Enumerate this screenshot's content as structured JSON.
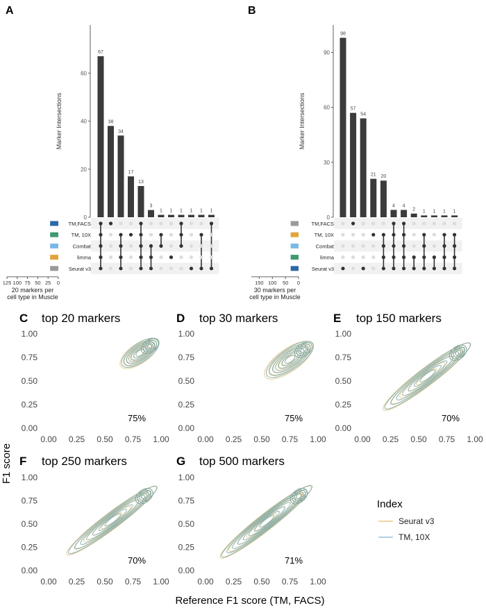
{
  "figure": {
    "panel_labels": [
      "A",
      "B",
      "C",
      "D",
      "E",
      "F",
      "G"
    ],
    "y_axis_label": "F1 score",
    "x_axis_label": "Reference F1 score (TM, FACS)"
  },
  "chart_data": [
    {
      "type": "upset",
      "panel": "A",
      "ylabel": "Marker Intersections",
      "y_ticks": [
        0,
        20,
        40,
        60
      ],
      "ylim": [
        0,
        80
      ],
      "values": [
        67,
        38,
        34,
        17,
        13,
        3,
        1,
        1,
        1,
        1,
        1,
        1
      ],
      "value_labels": [
        "67",
        "38",
        "34",
        "17",
        "13",
        "3",
        "1",
        "1",
        "1",
        "1",
        "1",
        "1"
      ],
      "sets": [
        "TM,FACS",
        "TM, 10X",
        "Combat",
        "limma",
        "Seurat v3"
      ],
      "set_colors": [
        "#2c6aa6",
        "#3e9a72",
        "#7ab9e6",
        "#e2a43a",
        "#9a9a9a"
      ],
      "set_sizes": [
        20,
        20,
        20,
        20,
        20
      ],
      "set_size_ticks": [
        "125",
        "100",
        "75",
        "50",
        "25",
        "0"
      ],
      "set_size_max": 125,
      "set_size_label_1": "20 markers per",
      "set_size_label_2": "cell type in Muscle",
      "matrix": [
        [
          1,
          1,
          1,
          1,
          1
        ],
        [
          1,
          0,
          0,
          0,
          0
        ],
        [
          0,
          1,
          1,
          1,
          1
        ],
        [
          0,
          1,
          0,
          0,
          0
        ],
        [
          1,
          1,
          1,
          1,
          1
        ],
        [
          0,
          0,
          1,
          1,
          1
        ],
        [
          0,
          1,
          1,
          0,
          0
        ],
        [
          0,
          0,
          0,
          1,
          0
        ],
        [
          1,
          1,
          1,
          0,
          0
        ],
        [
          0,
          0,
          0,
          0,
          1
        ],
        [
          0,
          1,
          0,
          0,
          1
        ],
        [
          1,
          0,
          0,
          0,
          1
        ]
      ]
    },
    {
      "type": "upset",
      "panel": "B",
      "ylabel": "Marker Intersections",
      "y_ticks": [
        0,
        30,
        60,
        90
      ],
      "ylim": [
        0,
        105
      ],
      "values": [
        98,
        57,
        54,
        21,
        20,
        4,
        4,
        2,
        1,
        1,
        1,
        1
      ],
      "value_labels": [
        "98",
        "57",
        "54",
        "21",
        "20",
        "4",
        "4",
        "2",
        "1",
        "1",
        "1",
        "1"
      ],
      "sets": [
        "TM,FACS",
        "TM, 10X",
        "Combat",
        "limma",
        "Seurat v3"
      ],
      "set_colors": [
        "#9a9a9a",
        "#e2a43a",
        "#7ab9e6",
        "#3e9a72",
        "#2c6aa6"
      ],
      "set_sizes": [
        30,
        30,
        30,
        30,
        30
      ],
      "set_size_ticks": [
        "150",
        "100",
        "50",
        "0"
      ],
      "set_size_max": 180,
      "set_size_label_1": "30 markers per",
      "set_size_label_2": "cell type in Muscle",
      "matrix": [
        [
          0,
          0,
          0,
          0,
          1
        ],
        [
          1,
          0,
          0,
          0,
          0
        ],
        [
          0,
          0,
          0,
          0,
          1
        ],
        [
          0,
          1,
          0,
          0,
          0
        ],
        [
          0,
          1,
          1,
          1,
          1
        ],
        [
          1,
          1,
          1,
          1,
          1
        ],
        [
          1,
          1,
          1,
          1,
          1
        ],
        [
          0,
          0,
          0,
          1,
          1
        ],
        [
          0,
          1,
          1,
          1,
          1
        ],
        [
          0,
          0,
          0,
          1,
          1
        ],
        [
          0,
          1,
          1,
          1,
          1
        ],
        [
          0,
          1,
          1,
          1,
          1
        ]
      ]
    },
    {
      "type": "density-contour",
      "panel": "C",
      "title": "top 20 markers",
      "annotation": "75%",
      "x_ticks": [
        "0.00",
        "0.25",
        "0.50",
        "0.75",
        "1.00"
      ],
      "y_ticks": [
        "0.00",
        "0.25",
        "0.50",
        "0.75",
        "1.00"
      ],
      "xlim": [
        0,
        1
      ],
      "ylim": [
        0,
        1
      ],
      "series": [
        {
          "color": "#e5c98a",
          "centers": [
            [
              0.72,
              0.72
            ],
            [
              0.9,
              0.87
            ]
          ],
          "spread": [
            0.2,
            0.16
          ],
          "levels": 5
        },
        {
          "color": "#7fa6a0",
          "centers": [
            [
              0.72,
              0.72
            ],
            [
              0.9,
              0.87
            ]
          ],
          "spread": [
            0.19,
            0.15
          ],
          "levels": 7
        }
      ]
    },
    {
      "type": "density-contour",
      "panel": "D",
      "title": "top 30 markers",
      "annotation": "75%",
      "x_ticks": [
        "0.00",
        "0.25",
        "0.50",
        "0.75",
        "1.00"
      ],
      "y_ticks": [
        "0.00",
        "0.25",
        "0.50",
        "0.75",
        "1.00"
      ],
      "xlim": [
        0,
        1
      ],
      "ylim": [
        0,
        1
      ],
      "series": [
        {
          "color": "#e5c98a",
          "centers": [
            [
              0.62,
              0.62
            ],
            [
              0.87,
              0.83
            ]
          ],
          "spread": [
            0.24,
            0.19
          ],
          "levels": 5
        },
        {
          "color": "#7fa6a0",
          "centers": [
            [
              0.62,
              0.62
            ],
            [
              0.87,
              0.83
            ]
          ],
          "spread": [
            0.22,
            0.17
          ],
          "levels": 7
        }
      ]
    },
    {
      "type": "density-contour",
      "panel": "E",
      "title": "top 150 markers",
      "annotation": "70%",
      "x_ticks": [
        "0.00",
        "0.25",
        "0.50",
        "0.75",
        "1.00"
      ],
      "y_ticks": [
        "0.00",
        "0.25",
        "0.50",
        "0.75",
        "1.00"
      ],
      "xlim": [
        0,
        1
      ],
      "ylim": [
        0,
        1
      ],
      "series": [
        {
          "color": "#e5c98a",
          "centers": [
            [
              0.3,
              0.3
            ],
            [
              0.85,
              0.8
            ]
          ],
          "spread": [
            0.34,
            0.14
          ],
          "levels": 5
        },
        {
          "color": "#7fa6a0",
          "centers": [
            [
              0.3,
              0.3
            ],
            [
              0.85,
              0.8
            ]
          ],
          "spread": [
            0.32,
            0.13
          ],
          "levels": 7
        }
      ]
    },
    {
      "type": "density-contour",
      "panel": "F",
      "title": "top 250 markers",
      "annotation": "70%",
      "x_ticks": [
        "0.00",
        "0.25",
        "0.50",
        "0.75",
        "1.00"
      ],
      "y_ticks": [
        "0.00",
        "0.25",
        "0.50",
        "0.75",
        "1.00"
      ],
      "xlim": [
        0,
        1
      ],
      "ylim": [
        0,
        1
      ],
      "series": [
        {
          "color": "#e5c98a",
          "centers": [
            [
              0.28,
              0.28
            ],
            [
              0.85,
              0.8
            ]
          ],
          "spread": [
            0.35,
            0.13
          ],
          "levels": 5
        },
        {
          "color": "#7fa6a0",
          "centers": [
            [
              0.28,
              0.28
            ],
            [
              0.85,
              0.8
            ]
          ],
          "spread": [
            0.33,
            0.12
          ],
          "levels": 7
        }
      ]
    },
    {
      "type": "density-contour",
      "panel": "G",
      "title": "top 500 markers",
      "annotation": "71%",
      "x_ticks": [
        "0.00",
        "0.25",
        "0.50",
        "0.75",
        "1.00"
      ],
      "y_ticks": [
        "0.00",
        "0.25",
        "0.50",
        "0.75",
        "1.00"
      ],
      "xlim": [
        0,
        1
      ],
      "ylim": [
        0,
        1
      ],
      "series": [
        {
          "color": "#e5c98a",
          "centers": [
            [
              0.25,
              0.25
            ],
            [
              0.83,
              0.8
            ]
          ],
          "spread": [
            0.36,
            0.13
          ],
          "levels": 5
        },
        {
          "color": "#7fa6a0",
          "centers": [
            [
              0.25,
              0.25
            ],
            [
              0.83,
              0.8
            ]
          ],
          "spread": [
            0.35,
            0.12
          ],
          "levels": 8
        }
      ]
    }
  ],
  "legend": {
    "title": "Index",
    "items": [
      {
        "label": "Seurat v3",
        "color": "#e5c98a"
      },
      {
        "label": "TM, 10X",
        "color": "#9cc0dc"
      }
    ]
  }
}
